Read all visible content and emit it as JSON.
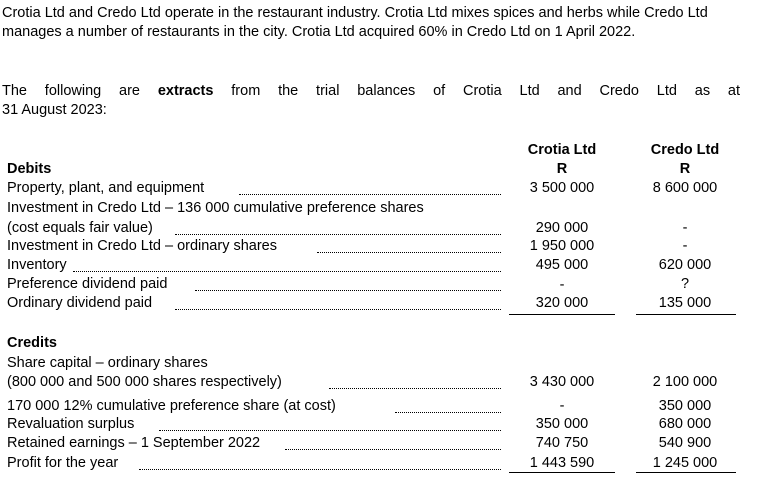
{
  "intro": {
    "paragraph1": "Crotia Ltd and Credo Ltd operate in the restaurant industry. Crotia Ltd mixes spices and herbs while Credo Ltd manages a number of restaurants in the city. Crotia Ltd acquired 60% in Credo Ltd on 1 April 2022.",
    "p2_before": "The following are ",
    "p2_bold": "extracts",
    "p2_after": " from the trial balances of Crotia Ltd and Credo Ltd as at",
    "p2_line2": "31 August 2023:"
  },
  "columns": {
    "crotia": "Crotia Ltd",
    "credo": "Credo Ltd",
    "currency": "R"
  },
  "debits": {
    "heading": "Debits",
    "rows": [
      {
        "label": "Property, plant, and equipment",
        "crotia": "3 500 000",
        "credo": "8 600 000"
      },
      {
        "label": "Investment in Credo Ltd – 136 000 cumulative preference shares",
        "crotia": "",
        "credo": ""
      },
      {
        "label": "(cost equals fair value)",
        "crotia": "290 000",
        "credo": "-"
      },
      {
        "label": "Investment in Credo Ltd – ordinary shares",
        "crotia": "1 950 000",
        "credo": "-"
      },
      {
        "label": "Inventory",
        "crotia": "495 000",
        "credo": "620 000"
      },
      {
        "label": "Preference dividend paid",
        "crotia": "-",
        "credo": "?"
      },
      {
        "label": "Ordinary dividend paid",
        "crotia": "320 000",
        "credo": "135 000"
      }
    ]
  },
  "credits": {
    "heading": "Credits",
    "rows": [
      {
        "label": "Share capital – ordinary shares",
        "crotia": "",
        "credo": ""
      },
      {
        "label": "(800 000 and 500 000 shares respectively)",
        "crotia": "3 430 000",
        "credo": "2 100 000"
      },
      {
        "label": "170 000 12% cumulative preference share (at cost)",
        "crotia": "-",
        "credo": "350 000"
      },
      {
        "label": "Revaluation surplus",
        "crotia": "350 000",
        "credo": "680 000"
      },
      {
        "label": "Retained earnings – 1 September 2022",
        "crotia": "740 750",
        "credo": "540 900"
      },
      {
        "label": "Profit for the year",
        "crotia": "1 443 590",
        "credo": "1 245 000"
      }
    ]
  }
}
